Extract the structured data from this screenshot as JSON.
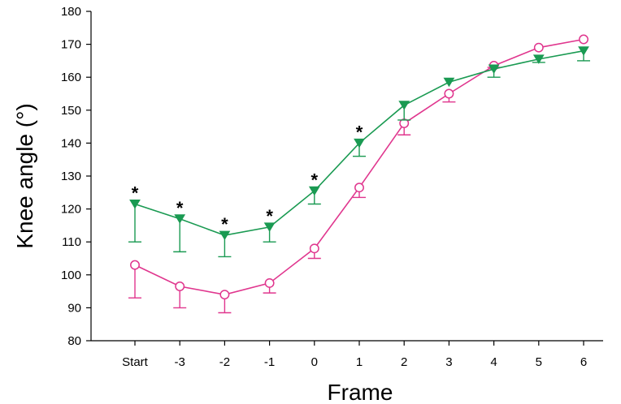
{
  "chart_data": {
    "type": "line",
    "xlabel": "Frame",
    "ylabel": "Knee angle (°)",
    "categories": [
      "Start",
      "-3",
      "-2",
      "-1",
      "0",
      "1",
      "2",
      "3",
      "4",
      "5",
      "6"
    ],
    "ylim": [
      80,
      180
    ],
    "yticks": [
      80,
      90,
      100,
      110,
      120,
      130,
      140,
      150,
      160,
      170,
      180
    ],
    "grid": false,
    "legend": "none",
    "series": [
      {
        "marker": "triangle-down-filled",
        "color": "#1a9a52",
        "error_direction": "down",
        "values": [
          121.5,
          117.0,
          112.0,
          114.5,
          125.5,
          140.0,
          151.5,
          158.5,
          162.5,
          165.5,
          168.0
        ],
        "errors": [
          11.5,
          10.0,
          6.5,
          4.5,
          4.0,
          4.0,
          4.5,
          0.0,
          2.5,
          1.0,
          3.0
        ]
      },
      {
        "marker": "circle-open",
        "color": "#e0368e",
        "error_direction": "down",
        "values": [
          103.0,
          96.5,
          94.0,
          97.5,
          108.0,
          126.5,
          146.0,
          155.0,
          163.5,
          169.0,
          171.5
        ],
        "errors": [
          10.0,
          6.5,
          5.5,
          3.0,
          3.0,
          3.0,
          3.5,
          2.5,
          0.5,
          0.0,
          0.0
        ]
      }
    ],
    "annotations": [
      {
        "category": "Start",
        "text": "*"
      },
      {
        "category": "-3",
        "text": "*"
      },
      {
        "category": "-2",
        "text": "*"
      },
      {
        "category": "-1",
        "text": "*"
      },
      {
        "category": "0",
        "text": "*"
      },
      {
        "category": "1",
        "text": "*"
      }
    ]
  }
}
